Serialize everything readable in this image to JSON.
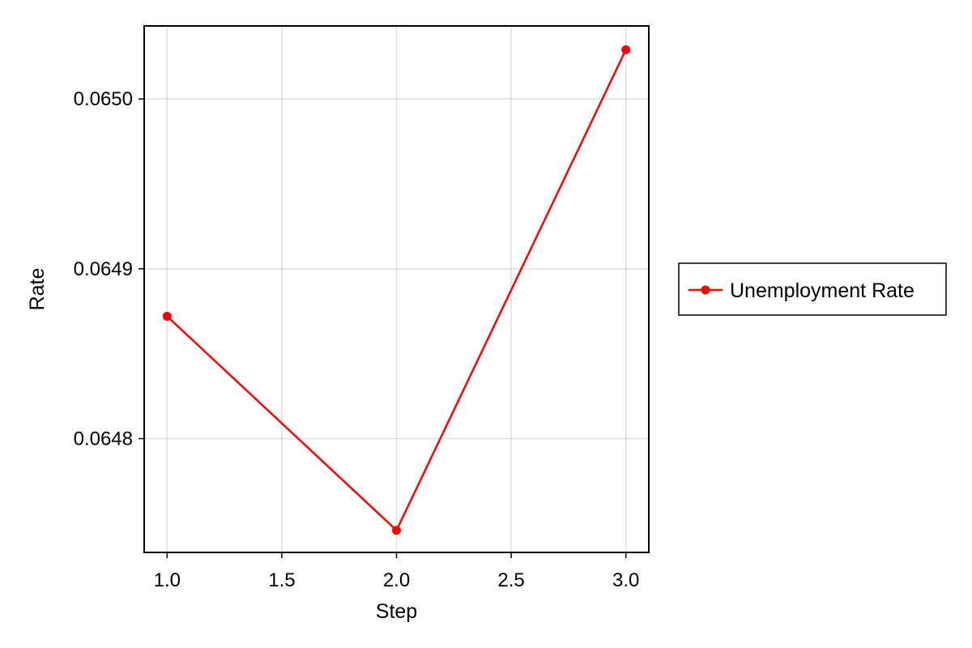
{
  "chart_data": {
    "type": "line",
    "title": "",
    "xlabel": "Step",
    "ylabel": "Rate",
    "x": [
      1,
      2,
      3
    ],
    "series": [
      {
        "name": "Unemployment Rate",
        "values": [
          0.064872,
          0.064746,
          0.065029
        ],
        "color": "#ff0000",
        "marker": "circle"
      }
    ],
    "xlim": [
      0.9,
      3.1
    ],
    "ylim": [
      0.064733,
      0.065043
    ],
    "xticks": [
      1.0,
      1.5,
      2.0,
      2.5,
      3.0
    ],
    "xtick_labels": [
      "1.0",
      "1.5",
      "2.0",
      "2.5",
      "3.0"
    ],
    "yticks": [
      0.0648,
      0.0649,
      0.065
    ],
    "ytick_labels": [
      "0.0648",
      "0.0649",
      "0.0650"
    ],
    "grid": true,
    "legend_position": "right"
  }
}
